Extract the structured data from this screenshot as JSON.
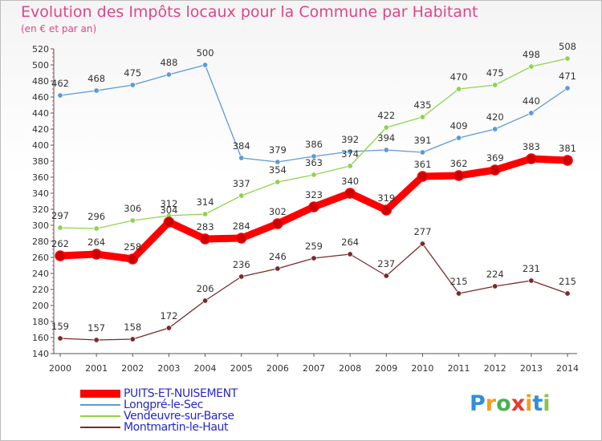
{
  "chart_data": {
    "type": "line",
    "title": "Evolution des Impôts locaux pour la Commune par Habitant",
    "subtitle": "(en € et par an)",
    "xlabel": "",
    "ylabel": "",
    "ylim": [
      140,
      520
    ],
    "ytick_step": 20,
    "grid": false,
    "legend_position": "bottom-left",
    "x": [
      "2000",
      "2001",
      "2002",
      "2003",
      "2004",
      "2005",
      "2006",
      "2007",
      "2008",
      "2009",
      "2010",
      "2011",
      "2012",
      "2013",
      "2014"
    ],
    "series": [
      {
        "name": "PUITS-ET-NUISEMENT",
        "color": "#ff0000",
        "values": [
          262,
          264,
          258,
          304,
          283,
          284,
          302,
          323,
          340,
          319,
          361,
          362,
          369,
          383,
          381
        ]
      },
      {
        "name": "Longpré-le-Sec",
        "color": "#5b9bd5",
        "values": [
          462,
          468,
          475,
          488,
          500,
          384,
          379,
          386,
          392,
          394,
          391,
          409,
          420,
          440,
          471
        ]
      },
      {
        "name": "Vendeuvre-sur-Barse",
        "color": "#8fd44c",
        "values": [
          297,
          296,
          306,
          312,
          314,
          337,
          354,
          363,
          374,
          422,
          435,
          470,
          475,
          498,
          508
        ]
      },
      {
        "name": "Montmartin-le-Haut",
        "color": "#7a2a2a",
        "values": [
          159,
          157,
          158,
          172,
          206,
          236,
          246,
          259,
          264,
          237,
          277,
          215,
          224,
          231,
          215
        ]
      }
    ]
  },
  "logo": {
    "letters": [
      "P",
      "r",
      "o",
      "x",
      "i",
      "t",
      "i"
    ],
    "colors": [
      "#2f8fd8",
      "#f0a020",
      "#4caf50",
      "#e8392d",
      "#f0a020",
      "#2f8fd8",
      "#8bc34a"
    ]
  }
}
